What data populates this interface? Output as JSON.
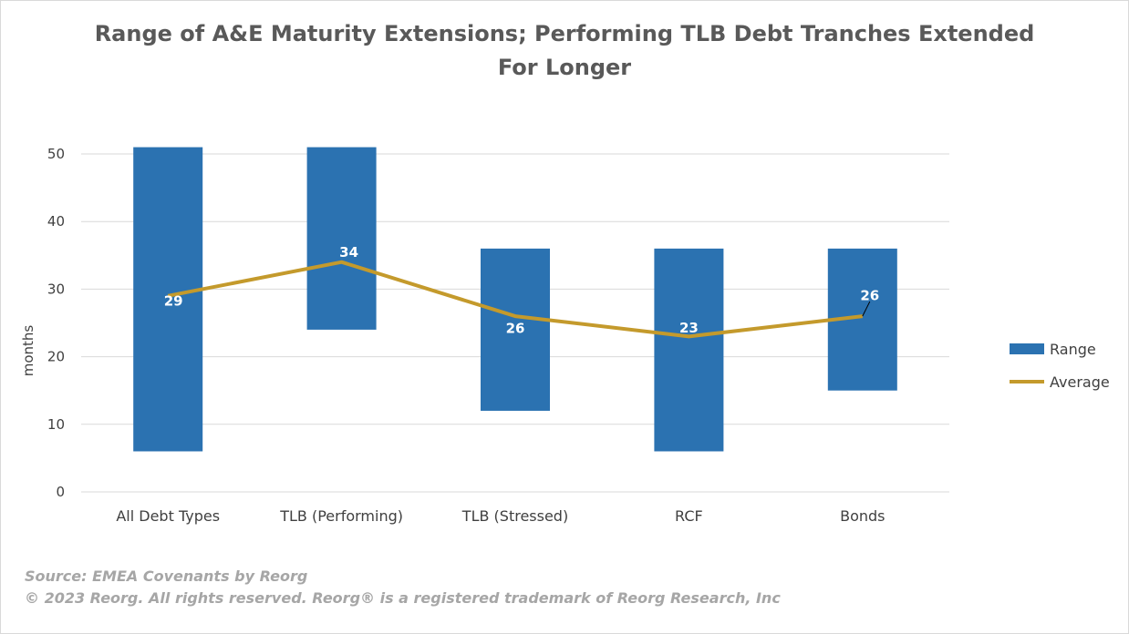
{
  "chart_data": {
    "type": "bar",
    "title_line1": "Range of A&E Maturity Extensions; Performing TLB Debt Tranches Extended",
    "title_line2": "For Longer",
    "ylabel": "months",
    "xlabel": "",
    "ylim": [
      0,
      55
    ],
    "yticks": [
      0,
      10,
      20,
      30,
      40,
      50
    ],
    "grid": true,
    "legend_position": "right",
    "categories": [
      "All Debt Types",
      "TLB (Performing)",
      "TLB (Stressed)",
      "RCF",
      "Bonds"
    ],
    "series": [
      {
        "name": "Range",
        "type": "floating-bar",
        "color": "#2B72B1",
        "low": [
          6,
          24,
          12,
          6,
          15
        ],
        "high": [
          51,
          51,
          36,
          36,
          36
        ]
      },
      {
        "name": "Average",
        "type": "line",
        "color": "#C49A2C",
        "values": [
          29,
          34,
          26,
          23,
          26
        ],
        "labels": [
          "29",
          "34",
          "26",
          "23",
          "26"
        ]
      }
    ]
  },
  "footer": {
    "source": "Source: EMEA Covenants  by Reorg",
    "copyright": "© 2023 Reorg. All rights reserved. Reorg® is a registered trademark of Reorg Research, Inc"
  }
}
